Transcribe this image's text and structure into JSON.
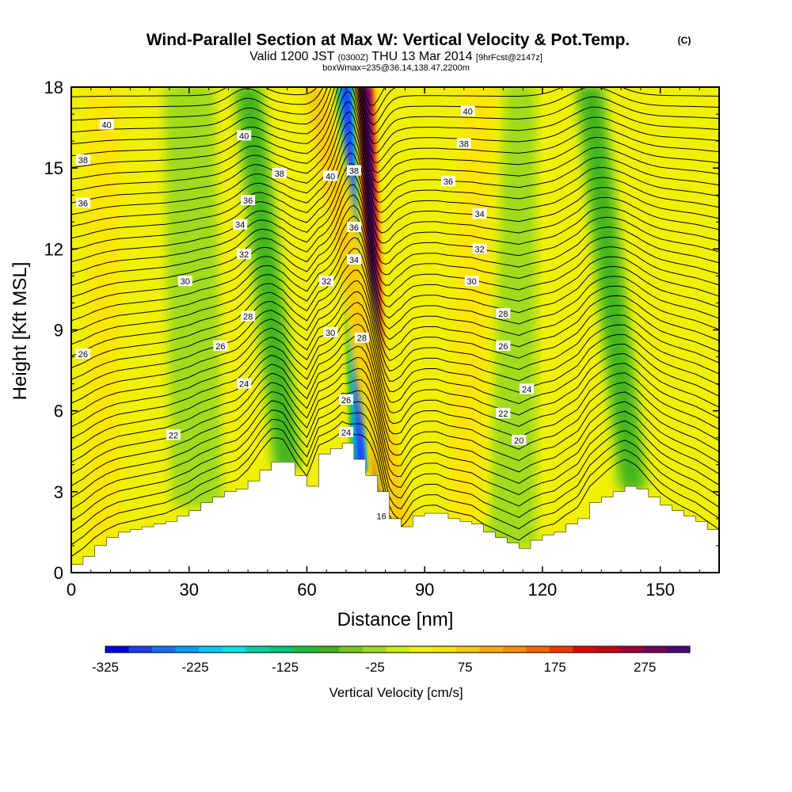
{
  "header": {
    "title": "Wind-Parallel Section at Max W: Vertical Velocity & Pot.Temp.",
    "copyright": "(C)",
    "subtitle_main": "Valid 1200 JST",
    "subtitle_z": "(0300Z)",
    "subtitle_date": "THU 13 Mar 2014",
    "subtitle_fcst": "[9hrFcst@2147z]",
    "subtitle2": "boxWmax=235@36.14,138.47,2200m"
  },
  "chart_data": {
    "type": "heatmap",
    "xlabel": "Distance [nm]",
    "ylabel": "Height [Kft MSL]",
    "xlim": [
      0,
      165
    ],
    "ylim": [
      0,
      18
    ],
    "x_ticks": [
      "0",
      "30",
      "60",
      "90",
      "120",
      "150"
    ],
    "y_ticks": [
      "0",
      "3",
      "6",
      "9",
      "12",
      "15",
      "18"
    ],
    "colorbar": {
      "label": "Vertical Velocity [cm/s]",
      "tick_labels": [
        "-325",
        "-225",
        "-125",
        "-25",
        "75",
        "175",
        "275"
      ],
      "range": [
        -325,
        325
      ],
      "colors": [
        "#0000f0",
        "#1e3cff",
        "#1a6cff",
        "#00a0ff",
        "#00c8ff",
        "#00e6e6",
        "#00d2a0",
        "#00c878",
        "#1ebe3c",
        "#3cb41e",
        "#78c81e",
        "#a0dc1e",
        "#c8f000",
        "#f0f000",
        "#ffe600",
        "#ffc800",
        "#ffaa00",
        "#ff8c00",
        "#ff6400",
        "#ff3200",
        "#e60000",
        "#c80014",
        "#a0003c",
        "#78005a",
        "#500078"
      ]
    },
    "terrain_profile": {
      "x": [
        0,
        3,
        6,
        9,
        12,
        15,
        18,
        21,
        24,
        27,
        30,
        33,
        36,
        39,
        42,
        45,
        48,
        51,
        54,
        57,
        60,
        63,
        66,
        69,
        72,
        75,
        78,
        81,
        84,
        87,
        90,
        93,
        96,
        99,
        102,
        105,
        108,
        111,
        114,
        117,
        120,
        123,
        126,
        129,
        132,
        135,
        138,
        141,
        144,
        147,
        150,
        153,
        156,
        159,
        162,
        165
      ],
      "height_kft": [
        0.3,
        0.6,
        1.0,
        1.3,
        1.5,
        1.6,
        1.7,
        1.8,
        1.9,
        2.1,
        2.3,
        2.6,
        2.8,
        3.0,
        3.1,
        3.4,
        3.8,
        4.1,
        4.1,
        3.6,
        3.2,
        4.4,
        4.6,
        4.8,
        4.2,
        3.6,
        3.0,
        2.0,
        1.7,
        2.1,
        2.2,
        2.2,
        2.0,
        1.9,
        1.8,
        1.5,
        1.3,
        1.1,
        0.9,
        1.2,
        1.4,
        1.5,
        1.8,
        2.0,
        2.6,
        2.8,
        3.0,
        3.2,
        3.1,
        2.8,
        2.5,
        2.3,
        2.1,
        1.9,
        1.6,
        1.3
      ]
    },
    "vertical_velocity_features": [
      {
        "x_base": 74,
        "x_top": 70,
        "w_cm_s": -275
      },
      {
        "x_base": 79,
        "x_top": 75,
        "w_cm_s": 300
      },
      {
        "x_base": 84,
        "x_top": 62,
        "w_cm_s": 75
      },
      {
        "x_base": 55,
        "x_top": 45,
        "w_cm_s": -75
      },
      {
        "x_base": 143,
        "x_top": 132,
        "w_cm_s": -75
      },
      {
        "x_base": 32,
        "x_top": 30,
        "w_cm_s": -25
      },
      {
        "x_base": 112,
        "x_top": 112,
        "w_cm_s": -25
      },
      {
        "x_base": 8,
        "x_top": 8,
        "w_cm_s": 50
      },
      {
        "x_base": 100,
        "x_top": 104,
        "w_cm_s": 50
      }
    ],
    "potential_temperature_labels": [
      {
        "text": "40",
        "x": 9,
        "y": 16.6
      },
      {
        "text": "38",
        "x": 3,
        "y": 15.3
      },
      {
        "text": "36",
        "x": 3,
        "y": 13.7
      },
      {
        "text": "30",
        "x": 29,
        "y": 10.8
      },
      {
        "text": "26",
        "x": 3,
        "y": 8.1
      },
      {
        "text": "26",
        "x": 38,
        "y": 8.4
      },
      {
        "text": "24",
        "x": 44,
        "y": 7.0
      },
      {
        "text": "22",
        "x": 26,
        "y": 5.1
      },
      {
        "text": "28",
        "x": 45,
        "y": 9.5
      },
      {
        "text": "32",
        "x": 44,
        "y": 11.8
      },
      {
        "text": "34",
        "x": 43,
        "y": 12.9
      },
      {
        "text": "36",
        "x": 45,
        "y": 13.8
      },
      {
        "text": "38",
        "x": 53,
        "y": 14.8
      },
      {
        "text": "40",
        "x": 44,
        "y": 16.2
      },
      {
        "text": "40",
        "x": 66,
        "y": 14.7
      },
      {
        "text": "38",
        "x": 72,
        "y": 14.9
      },
      {
        "text": "36",
        "x": 72,
        "y": 12.8
      },
      {
        "text": "34",
        "x": 72,
        "y": 11.6
      },
      {
        "text": "32",
        "x": 65,
        "y": 10.8
      },
      {
        "text": "30",
        "x": 66,
        "y": 8.9
      },
      {
        "text": "28",
        "x": 74,
        "y": 8.7
      },
      {
        "text": "26",
        "x": 70,
        "y": 6.4
      },
      {
        "text": "24",
        "x": 70,
        "y": 5.2
      },
      {
        "text": "16",
        "x": 79,
        "y": 2.1
      },
      {
        "text": "40",
        "x": 101,
        "y": 17.1
      },
      {
        "text": "38",
        "x": 100,
        "y": 15.9
      },
      {
        "text": "36",
        "x": 96,
        "y": 14.5
      },
      {
        "text": "34",
        "x": 104,
        "y": 13.3
      },
      {
        "text": "32",
        "x": 104,
        "y": 12.0
      },
      {
        "text": "30",
        "x": 102,
        "y": 10.8
      },
      {
        "text": "28",
        "x": 110,
        "y": 9.6
      },
      {
        "text": "26",
        "x": 110,
        "y": 8.4
      },
      {
        "text": "24",
        "x": 116,
        "y": 6.8
      },
      {
        "text": "22",
        "x": 110,
        "y": 5.9
      },
      {
        "text": "20",
        "x": 114,
        "y": 4.9
      }
    ]
  }
}
